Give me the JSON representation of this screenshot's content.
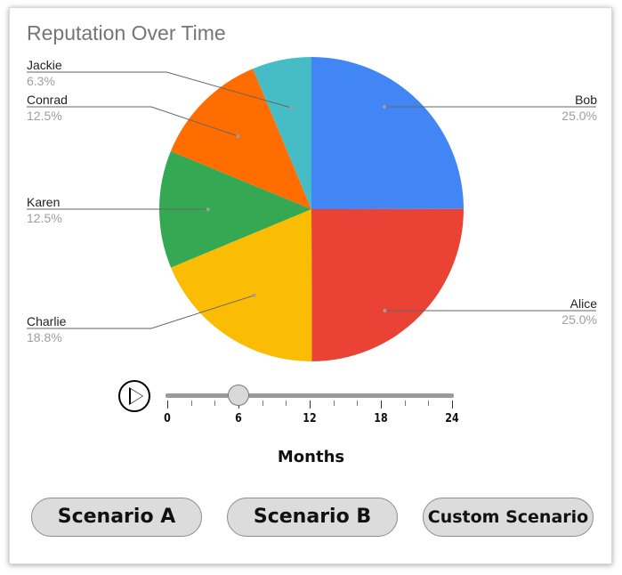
{
  "chart_data": {
    "type": "pie",
    "title": "Reputation Over Time",
    "slices": [
      {
        "name": "Bob",
        "percent": "25.0%",
        "value": 25.0,
        "color": "#4285F4"
      },
      {
        "name": "Alice",
        "percent": "25.0%",
        "value": 25.0,
        "color": "#EA4335"
      },
      {
        "name": "Charlie",
        "percent": "18.8%",
        "value": 18.8,
        "color": "#FBBC04"
      },
      {
        "name": "Karen",
        "percent": "12.5%",
        "value": 12.5,
        "color": "#34A853"
      },
      {
        "name": "Conrad",
        "percent": "12.5%",
        "value": 12.5,
        "color": "#FF6D01"
      },
      {
        "name": "Jackie",
        "percent": "6.3%",
        "value": 6.3,
        "color": "#46BDC6"
      }
    ]
  },
  "controls": {
    "slider": {
      "axis_label": "Months",
      "min": 0,
      "max": 24,
      "value": 6,
      "tick_labels": [
        "0",
        "6",
        "12",
        "18",
        "24"
      ]
    },
    "buttons": {
      "scenario_a": "Scenario A",
      "scenario_b": "Scenario B",
      "custom": "Custom Scenario"
    }
  }
}
